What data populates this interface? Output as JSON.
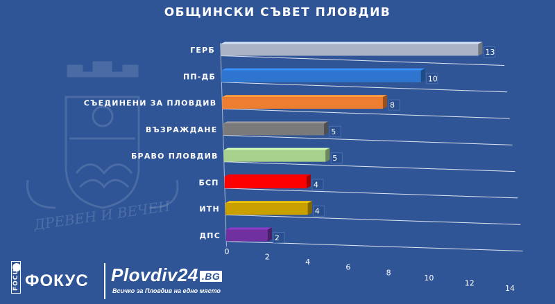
{
  "chart_data": {
    "type": "bar",
    "orientation": "horizontal",
    "title": "ОБЩИНСКИ СЪВЕТ ПЛОВДИВ",
    "categories": [
      "ГЕРБ",
      "ПП-ДБ",
      "СЪЕДИНЕНИ ЗА ПЛОВДИВ",
      "ВЪЗРАЖДАНЕ",
      "БРАВО ПЛОВДИВ",
      "БСП",
      "ИТН",
      "ДПС"
    ],
    "values": [
      13,
      10,
      8,
      5,
      5,
      4,
      4,
      2
    ],
    "colors": [
      "#aab4c6",
      "#2e75cf",
      "#ed7d31",
      "#7a7a7a",
      "#a9d18e",
      "#ff0000",
      "#c9a000",
      "#7030a0"
    ],
    "x_ticks": [
      "0",
      "2",
      "4",
      "6",
      "8",
      "10",
      "12",
      "14"
    ],
    "xlim": [
      0,
      14
    ],
    "grid": true,
    "legend": "none"
  },
  "logos": {
    "focus": {
      "tag": "FOCUS",
      "word": "ФОКУС"
    },
    "plovdiv24": {
      "word": "Plovdiv24",
      "tld": ".BG",
      "slogan": "Всичко за Пловдив на едно място"
    }
  },
  "watermark": {
    "motto": "ДРЕВЕН И ВЕЧЕН"
  },
  "colors": {
    "background": "#2f5597",
    "text": "#ffffff"
  }
}
